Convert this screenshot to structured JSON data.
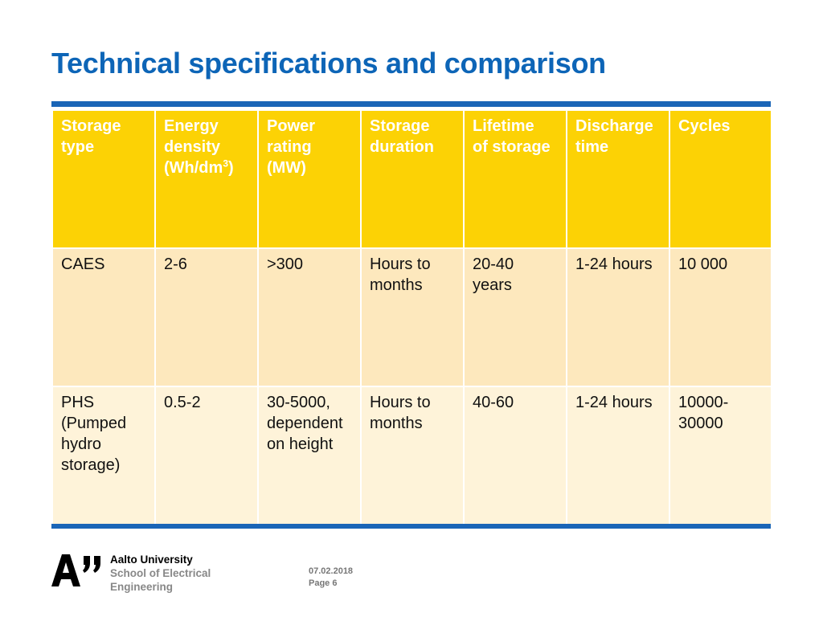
{
  "slide": {
    "title": "Technical specifications and comparison"
  },
  "table": {
    "headers": [
      {
        "text": "Storage\ntype"
      },
      {
        "text": "Energy\ndensity\n(Wh/dm",
        "sup": "3",
        "after": ")"
      },
      {
        "text": "Power\nrating\n(MW)"
      },
      {
        "text": "Storage\nduration"
      },
      {
        "text": "Lifetime\nof storage"
      },
      {
        "text": "Discharge\ntime"
      },
      {
        "text": "Cycles"
      }
    ],
    "rows": [
      [
        "CAES",
        "2-6",
        ">300",
        "Hours to\nmonths",
        "20-40\nyears",
        "1-24 hours",
        "10 000"
      ],
      [
        "PHS\n(Pumped\nhydro\nstorage)",
        "0.5-2",
        "30-5000,\ndependent\non height",
        "Hours to\nmonths",
        "40-60",
        "1-24 hours",
        "10000-\n30000"
      ]
    ]
  },
  "footer": {
    "logo_text": "A\"",
    "university": "Aalto University",
    "school_line1": "School of Electrical",
    "school_line2": "Engineering",
    "date": "07.02.2018",
    "page": "Page 6"
  },
  "colors": {
    "title_blue": "#0d65b7",
    "rule_blue": "#1a65b7",
    "header_yellow": "#fcd205",
    "row_a": "#fde8bd",
    "row_b": "#fef3d9"
  }
}
